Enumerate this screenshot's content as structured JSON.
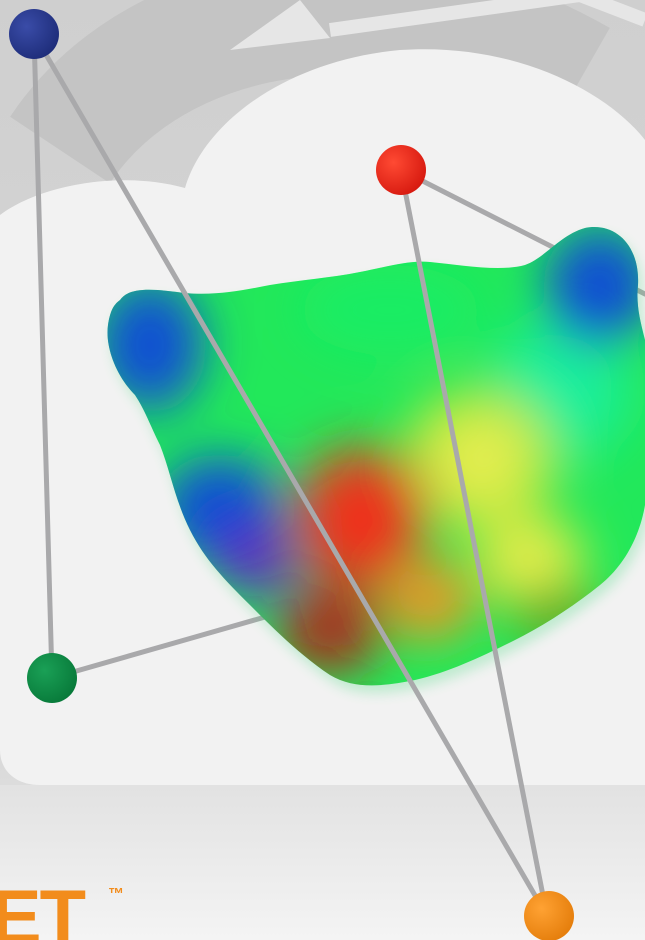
{
  "logo": {
    "wordmark": "NET",
    "trademark": "™"
  },
  "colors": {
    "background": "#d9d9d9",
    "cloud": "#f2f2f2",
    "network_edge": "#a9a9ab",
    "node_top_left": "#27388e",
    "node_top_right": "#ee2a1b",
    "node_bottom_left": "#0c8a45",
    "node_bottom_right": "#f28c1c",
    "brand_orange": "#f28c1c"
  },
  "icons": [
    "cloud-icon",
    "refresh-arrow-icon",
    "molecular-surface-icon",
    "network-graph-icon"
  ]
}
